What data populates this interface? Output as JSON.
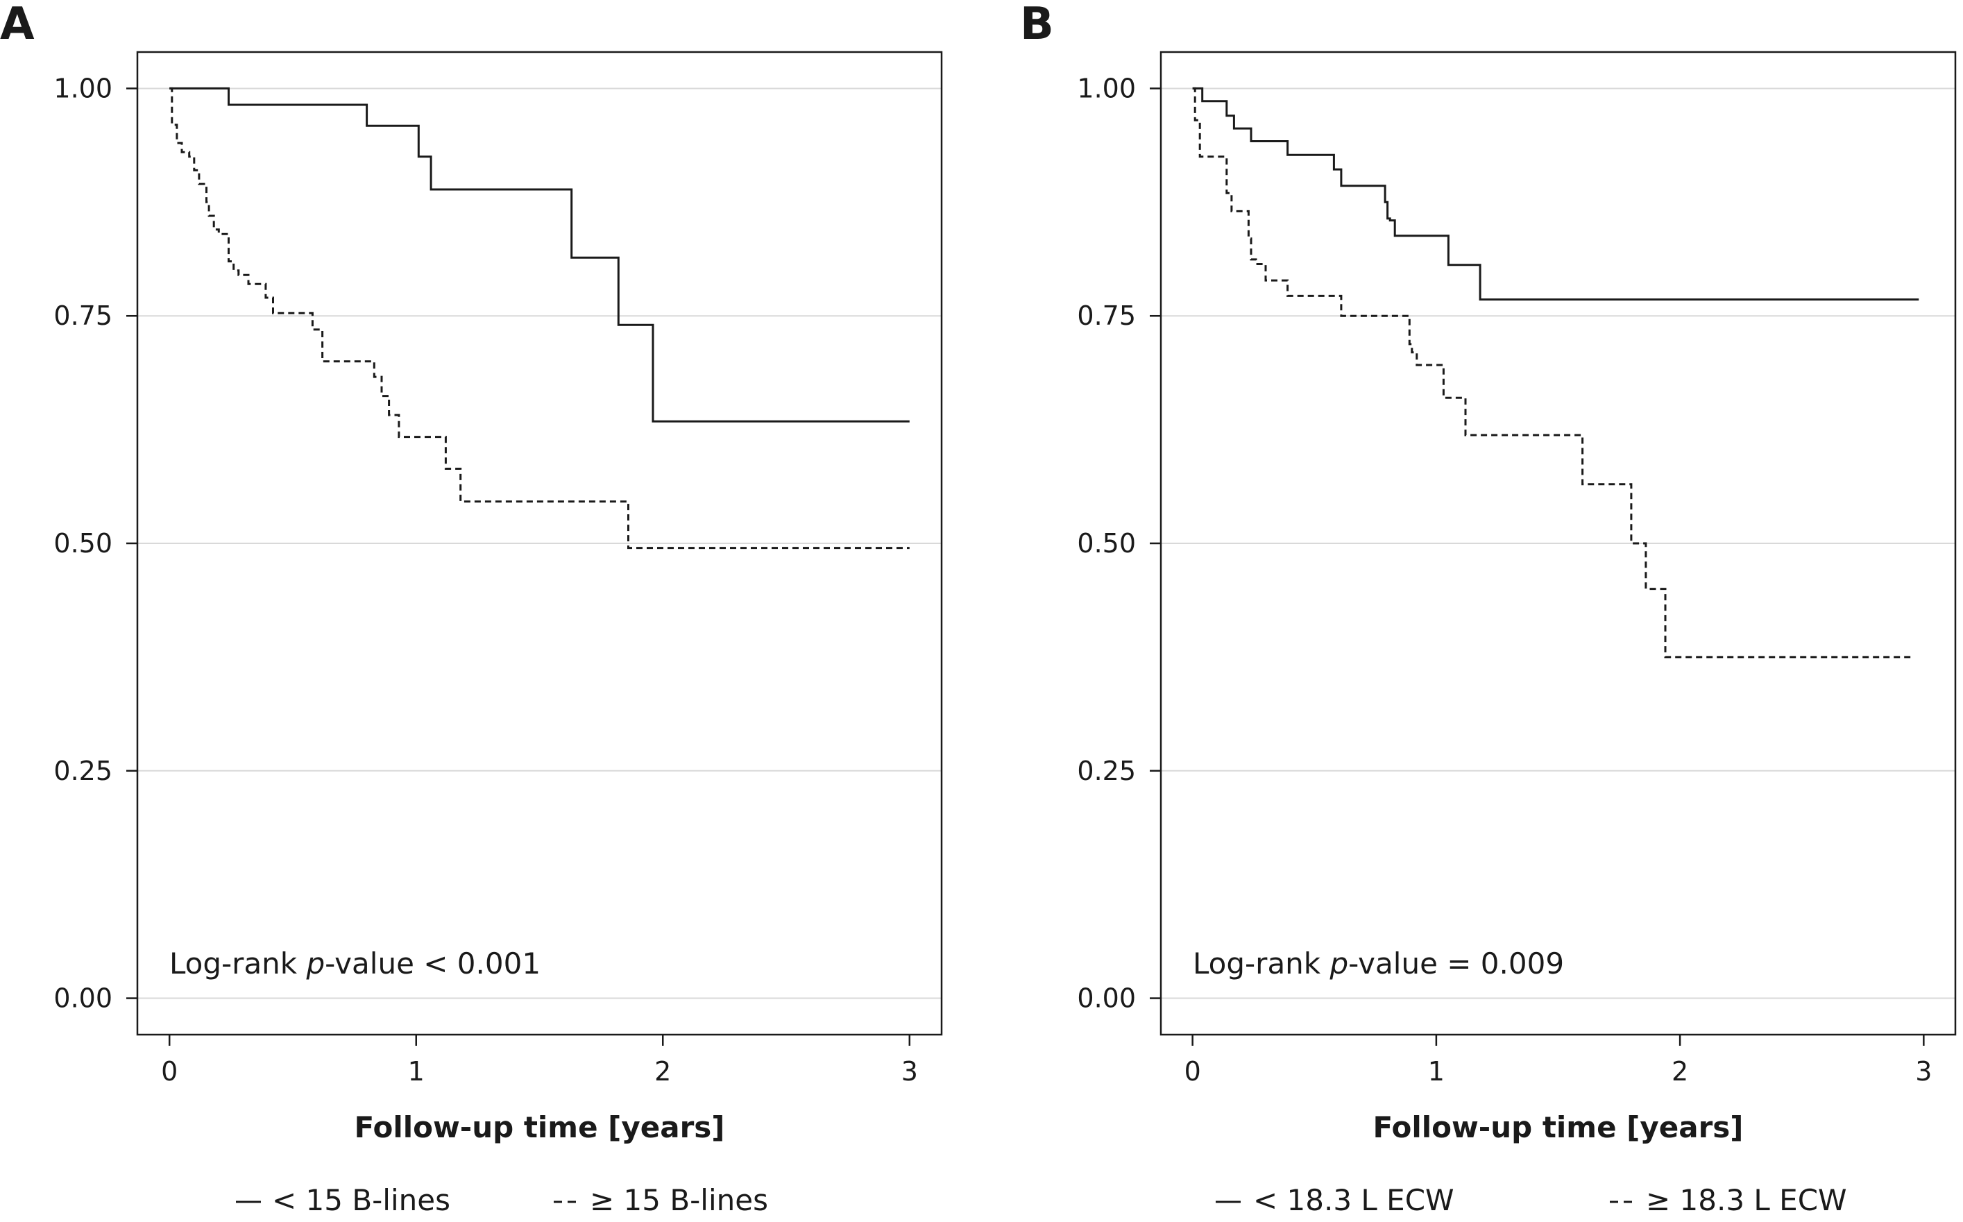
{
  "chart_data": [
    {
      "type": "line",
      "panel_label": "A",
      "xlabel": "Follow-up time [years]",
      "ylabel": "",
      "xlim": [
        -0.13,
        3.13
      ],
      "ylim": [
        -0.04,
        1.04
      ],
      "xticks": [
        0,
        1,
        2,
        3
      ],
      "xtick_labels": [
        "0",
        "1",
        "2",
        "3"
      ],
      "yticks": [
        0,
        0.25,
        0.5,
        0.75,
        1.0
      ],
      "ytick_labels": [
        "0.00",
        "0.25",
        "0.50",
        "0.75",
        "1.00"
      ],
      "grid": "horizontal",
      "annotation": {
        "prefix": "Log-rank ",
        "italic": "p",
        "suffix": "-value < 0.001"
      },
      "legend_position": "bottom",
      "series": [
        {
          "name": "< 15 B-lines",
          "style": "solid",
          "x": [
            0,
            0.24,
            0.8,
            1.01,
            1.06,
            1.63,
            1.82,
            1.96,
            3.0
          ],
          "y": [
            1.0,
            0.982,
            0.959,
            0.925,
            0.889,
            0.814,
            0.74,
            0.634,
            0.634
          ]
        },
        {
          "name": "≥ 15 B-lines",
          "style": "dashed",
          "x": [
            0,
            0.01,
            0.03,
            0.05,
            0.08,
            0.1,
            0.12,
            0.15,
            0.16,
            0.18,
            0.2,
            0.24,
            0.26,
            0.28,
            0.32,
            0.39,
            0.42,
            0.58,
            0.62,
            0.83,
            0.86,
            0.89,
            0.93,
            1.12,
            1.18,
            1.86,
            3.0
          ],
          "y": [
            1.0,
            0.96,
            0.94,
            0.93,
            0.925,
            0.91,
            0.895,
            0.875,
            0.86,
            0.845,
            0.84,
            0.81,
            0.8,
            0.795,
            0.785,
            0.77,
            0.753,
            0.735,
            0.7,
            0.683,
            0.662,
            0.641,
            0.617,
            0.582,
            0.546,
            0.495,
            0.495
          ]
        }
      ]
    },
    {
      "type": "line",
      "panel_label": "B",
      "xlabel": "Follow-up time [years]",
      "ylabel": "",
      "xlim": [
        -0.13,
        3.13
      ],
      "ylim": [
        -0.04,
        1.04
      ],
      "xticks": [
        0,
        1,
        2,
        3
      ],
      "xtick_labels": [
        "0",
        "1",
        "2",
        "3"
      ],
      "yticks": [
        0,
        0.25,
        0.5,
        0.75,
        1.0
      ],
      "ytick_labels": [
        "0.00",
        "0.25",
        "0.50",
        "0.75",
        "1.00"
      ],
      "grid": "horizontal",
      "annotation": {
        "prefix": "Log-rank ",
        "italic": "p",
        "suffix": "-value = 0.009"
      },
      "legend_position": "bottom",
      "series": [
        {
          "name": "< 18.3 L ECW",
          "style": "solid",
          "x": [
            0,
            0.04,
            0.14,
            0.17,
            0.24,
            0.39,
            0.58,
            0.61,
            0.79,
            0.8,
            0.81,
            0.83,
            1.05,
            1.18,
            2.98
          ],
          "y": [
            1.0,
            0.986,
            0.97,
            0.956,
            0.942,
            0.927,
            0.911,
            0.893,
            0.875,
            0.857,
            0.855,
            0.838,
            0.806,
            0.768,
            0.768
          ]
        },
        {
          "name": "≥ 18.3 L ECW",
          "style": "dashed",
          "x": [
            0,
            0.01,
            0.03,
            0.14,
            0.16,
            0.23,
            0.24,
            0.26,
            0.3,
            0.39,
            0.61,
            0.89,
            0.9,
            0.92,
            1.03,
            1.12,
            1.6,
            1.8,
            1.86,
            1.94,
            2.95
          ],
          "y": [
            1.0,
            0.965,
            0.925,
            0.885,
            0.865,
            0.835,
            0.812,
            0.807,
            0.789,
            0.772,
            0.75,
            0.719,
            0.71,
            0.696,
            0.66,
            0.619,
            0.565,
            0.5,
            0.45,
            0.375,
            0.375
          ]
        }
      ]
    }
  ]
}
